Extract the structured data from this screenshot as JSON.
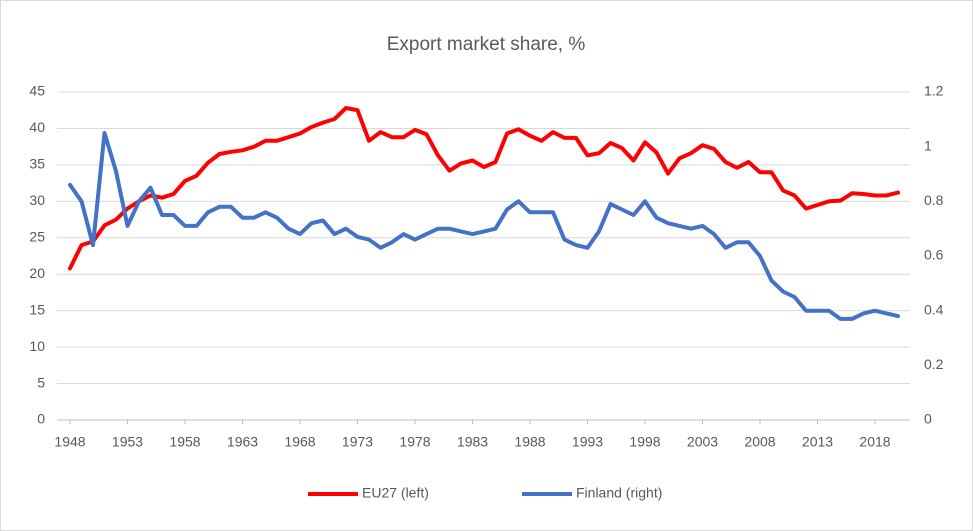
{
  "chart_data": {
    "type": "line",
    "title": "Export market share, %",
    "x": [
      1948,
      1949,
      1950,
      1951,
      1952,
      1953,
      1954,
      1955,
      1956,
      1957,
      1958,
      1959,
      1960,
      1961,
      1962,
      1963,
      1964,
      1965,
      1966,
      1967,
      1968,
      1969,
      1970,
      1971,
      1972,
      1973,
      1974,
      1975,
      1976,
      1977,
      1978,
      1979,
      1980,
      1981,
      1982,
      1983,
      1984,
      1985,
      1986,
      1987,
      1988,
      1989,
      1990,
      1991,
      1992,
      1993,
      1994,
      1995,
      1996,
      1997,
      1998,
      1999,
      2000,
      2001,
      2002,
      2003,
      2004,
      2005,
      2006,
      2007,
      2008,
      2009,
      2010,
      2011,
      2012,
      2013,
      2014,
      2015,
      2016,
      2017,
      2018,
      2019,
      2020
    ],
    "series": [
      {
        "name": "EU27 (left)",
        "color": "#ff0000",
        "axis": "y",
        "values": [
          20.8,
          24,
          24.5,
          26.7,
          27.5,
          29,
          30,
          30.8,
          30.5,
          31,
          32.8,
          33.5,
          35.3,
          36.5,
          36.8,
          37,
          37.5,
          38.3,
          38.3,
          38.8,
          39.3,
          40.2,
          40.8,
          41.3,
          42.8,
          42.5,
          38.3,
          39.5,
          38.8,
          38.8,
          39.8,
          39.2,
          36.3,
          34.2,
          35.2,
          35.6,
          34.7,
          35.4,
          39.3,
          39.9,
          39,
          38.3,
          39.5,
          38.7,
          38.7,
          36.3,
          36.6,
          38,
          37.3,
          35.6,
          38.1,
          36.7,
          33.8,
          35.9,
          36.6,
          37.7,
          37.2,
          35.4,
          34.6,
          35.4,
          34,
          34,
          31.5,
          30.8,
          29,
          29.5,
          30,
          30.1,
          31.1,
          31,
          30.8,
          30.8,
          31.2
        ]
      },
      {
        "name": "Finland (right)",
        "color": "#4472c4",
        "axis": "y2",
        "values": [
          0.86,
          0.8,
          0.64,
          1.05,
          0.91,
          0.71,
          0.8,
          0.85,
          0.75,
          0.75,
          0.71,
          0.71,
          0.76,
          0.78,
          0.78,
          0.74,
          0.74,
          0.76,
          0.74,
          0.7,
          0.68,
          0.72,
          0.73,
          0.68,
          0.7,
          0.67,
          0.66,
          0.63,
          0.65,
          0.68,
          0.66,
          0.68,
          0.7,
          0.7,
          0.69,
          0.68,
          0.69,
          0.7,
          0.77,
          0.8,
          0.76,
          0.76,
          0.76,
          0.66,
          0.64,
          0.63,
          0.69,
          0.79,
          0.77,
          0.75,
          0.8,
          0.74,
          0.72,
          0.71,
          0.7,
          0.71,
          0.68,
          0.63,
          0.65,
          0.65,
          0.6,
          0.51,
          0.47,
          0.45,
          0.4,
          0.4,
          0.4,
          0.37,
          0.37,
          0.39,
          0.4,
          0.39,
          0.38
        ]
      }
    ],
    "xlim": [
      1948,
      2020
    ],
    "xticks": [
      1948,
      1953,
      1958,
      1963,
      1968,
      1973,
      1978,
      1983,
      1988,
      1993,
      1998,
      2003,
      2008,
      2013,
      2018
    ],
    "ylim": [
      0,
      45
    ],
    "yticks": [
      0,
      5,
      10,
      15,
      20,
      25,
      30,
      35,
      40,
      45
    ],
    "y2lim": [
      0,
      1.2
    ],
    "y2ticks": [
      0,
      0.2,
      0.4,
      0.6,
      0.8,
      1,
      1.2
    ],
    "grid": true,
    "legend": "bottom"
  }
}
